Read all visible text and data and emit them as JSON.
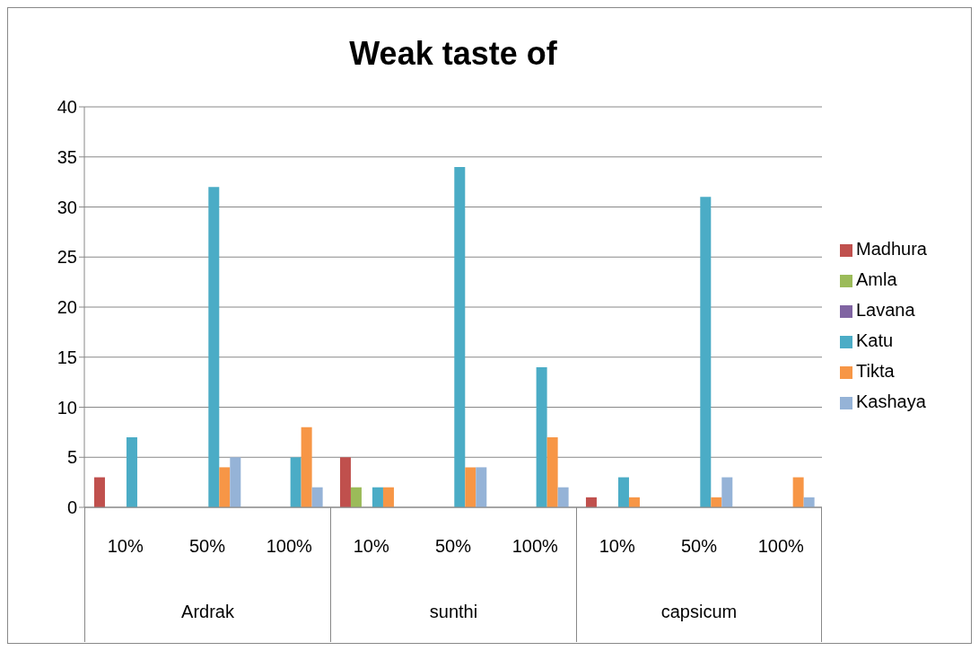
{
  "chart_data": {
    "type": "bar",
    "title": "Weak taste of",
    "categories": [
      "10%",
      "50%",
      "100%",
      "10%",
      "50%",
      "100%",
      "10%",
      "50%",
      "100%"
    ],
    "annotations": [
      "Ardrak",
      "sunthi",
      "capsicum"
    ],
    "series": [
      {
        "name": "Madhura",
        "color": "#c0504d",
        "values": [
          3,
          0,
          0,
          5,
          0,
          0,
          1,
          0,
          0
        ]
      },
      {
        "name": "Amla",
        "color": "#9bbb59",
        "values": [
          0,
          0,
          0,
          2,
          0,
          0,
          0,
          0,
          0
        ]
      },
      {
        "name": "Lavana",
        "color": "#8064a2",
        "values": [
          0,
          0,
          0,
          0,
          0,
          0,
          0,
          0,
          0
        ]
      },
      {
        "name": "Katu",
        "color": "#4bacc6",
        "values": [
          7,
          32,
          5,
          2,
          34,
          14,
          3,
          31,
          0
        ]
      },
      {
        "name": "Tikta",
        "color": "#f79646",
        "values": [
          0,
          4,
          8,
          2,
          4,
          7,
          1,
          1,
          3
        ]
      },
      {
        "name": "Kashaya",
        "color": "#95b3d7",
        "values": [
          0,
          5,
          2,
          0,
          4,
          2,
          0,
          3,
          1
        ]
      }
    ],
    "ylim": [
      0,
      40
    ],
    "yticks": [
      0,
      5,
      10,
      15,
      20,
      25,
      30,
      35,
      40
    ],
    "grid": "y",
    "legend": "right"
  }
}
